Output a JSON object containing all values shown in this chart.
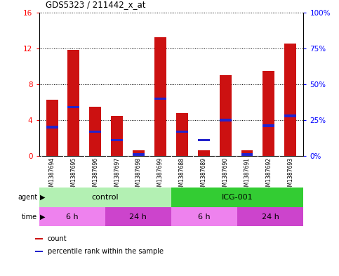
{
  "title": "GDS5323 / 211442_x_at",
  "samples": [
    "GSM1387694",
    "GSM1387695",
    "GSM1387696",
    "GSM1387697",
    "GSM1387698",
    "GSM1387699",
    "GSM1387688",
    "GSM1387689",
    "GSM1387690",
    "GSM1387691",
    "GSM1387692",
    "GSM1387693"
  ],
  "count_values": [
    6.3,
    11.8,
    5.5,
    4.5,
    0.6,
    13.2,
    4.8,
    0.6,
    9.0,
    0.6,
    9.5,
    12.5
  ],
  "percentile_values": [
    20.0,
    34.0,
    17.0,
    11.0,
    1.0,
    40.0,
    17.0,
    11.0,
    25.0,
    1.0,
    21.0,
    28.0
  ],
  "ylim_left": [
    0,
    16
  ],
  "ylim_right": [
    0,
    100
  ],
  "yticks_left": [
    0,
    4,
    8,
    12,
    16
  ],
  "yticks_right": [
    0,
    25,
    50,
    75,
    100
  ],
  "ytick_labels_left": [
    "0",
    "4",
    "8",
    "12",
    "16"
  ],
  "ytick_labels_right": [
    "0%",
    "25%",
    "50%",
    "75%",
    "100%"
  ],
  "agent_groups": [
    {
      "label": "control",
      "start": 0,
      "end": 6,
      "color": "#b3f0b3"
    },
    {
      "label": "ICG-001",
      "start": 6,
      "end": 12,
      "color": "#33cc33"
    }
  ],
  "time_groups": [
    {
      "label": "6 h",
      "start": 0,
      "end": 3,
      "color": "#ee82ee"
    },
    {
      "label": "24 h",
      "start": 3,
      "end": 6,
      "color": "#cc44cc"
    },
    {
      "label": "6 h",
      "start": 6,
      "end": 9,
      "color": "#ee82ee"
    },
    {
      "label": "24 h",
      "start": 9,
      "end": 12,
      "color": "#cc44cc"
    }
  ],
  "bar_color": "#cc1111",
  "blue_color": "#2222cc",
  "background_color": "#ffffff",
  "plot_bg": "#ffffff",
  "sample_bg": "#c8c8c8",
  "bar_width": 0.55,
  "legend_items": [
    {
      "label": "count",
      "color": "#cc1111"
    },
    {
      "label": "percentile rank within the sample",
      "color": "#2222cc"
    }
  ]
}
